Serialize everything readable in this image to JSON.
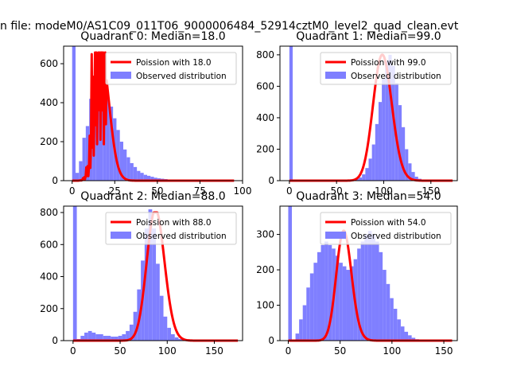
{
  "chart_data": {
    "suptitle": "n file: modeM0/AS1C09_011T06_9000006484_52914cztM0_level2_quad_clean.evt",
    "panels": [
      {
        "type": "bar",
        "title": "Quadrant 0: Median=18.0",
        "median": 18,
        "xlim": [
          -5,
          100
        ],
        "ylim": [
          0,
          690
        ],
        "xticks": [
          0,
          25,
          50,
          75,
          100
        ],
        "yticks": [
          0,
          200,
          400,
          600
        ],
        "bin_start": 0,
        "bin_width": 2,
        "counts": [
          690,
          40,
          100,
          220,
          280,
          420,
          480,
          560,
          620,
          550,
          420,
          380,
          320,
          260,
          200,
          160,
          120,
          90,
          70,
          50,
          40,
          30,
          25,
          20,
          15,
          12,
          10,
          8,
          6,
          5
        ],
        "legend": [
          "Poission with 18.0",
          "Observed distribution"
        ]
      },
      {
        "type": "bar",
        "title": "Quadrant 1: Median=99.0",
        "median": 99,
        "xlim": [
          -10,
          178
        ],
        "ylim": [
          0,
          855
        ],
        "xticks": [
          0,
          50,
          100,
          150
        ],
        "yticks": [
          0,
          200,
          400,
          600,
          800
        ],
        "bin_start": 0,
        "bin_width": 3.5,
        "counts": [
          855,
          0,
          0,
          0,
          0,
          0,
          0,
          0,
          0,
          0,
          0,
          0,
          0,
          0,
          0,
          0,
          0,
          0,
          0,
          5,
          10,
          20,
          40,
          80,
          140,
          230,
          360,
          500,
          650,
          760,
          800,
          730,
          620,
          480,
          340,
          200,
          110,
          55,
          25,
          12,
          6,
          3
        ],
        "legend": [
          "Poission with 99.0",
          "Observed distribution"
        ]
      },
      {
        "type": "bar",
        "title": "Quadrant 2: Median=88.0",
        "median": 88,
        "xlim": [
          -10,
          180
        ],
        "ylim": [
          0,
          840
        ],
        "xticks": [
          0,
          50,
          100,
          150
        ],
        "yticks": [
          0,
          200,
          400,
          600,
          800
        ],
        "bin_start": 0,
        "bin_width": 4,
        "counts": [
          840,
          10,
          30,
          50,
          60,
          50,
          40,
          40,
          30,
          30,
          25,
          25,
          30,
          40,
          60,
          100,
          180,
          320,
          500,
          700,
          820,
          700,
          480,
          280,
          150,
          80,
          40,
          20,
          10,
          5
        ],
        "legend": [
          "Poission with 88.0",
          "Observed distribution"
        ]
      },
      {
        "type": "bar",
        "title": "Quadrant 3: Median=54.0",
        "median": 54,
        "xlim": [
          -8,
          163
        ],
        "ylim": [
          0,
          380
        ],
        "xticks": [
          0,
          50,
          100,
          150
        ],
        "yticks": [
          0,
          100,
          200,
          300
        ],
        "bin_start": 0,
        "bin_width": 3.5,
        "counts": [
          380,
          0,
          20,
          60,
          100,
          150,
          190,
          220,
          250,
          270,
          280,
          270,
          260,
          240,
          220,
          210,
          200,
          210,
          230,
          260,
          280,
          300,
          310,
          300,
          280,
          250,
          200,
          160,
          120,
          90,
          60,
          40,
          25,
          15,
          8,
          4
        ],
        "legend": [
          "Poission with 54.0",
          "Observed distribution"
        ]
      }
    ]
  }
}
